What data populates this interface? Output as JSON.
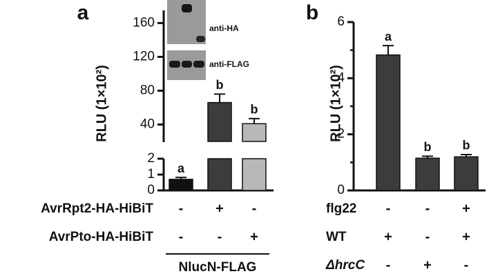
{
  "chart_data": [
    {
      "type": "bar",
      "panel_label": "a",
      "y_label": "RLU (1×10²)",
      "segments": [
        {
          "ylim": [
            0,
            2
          ],
          "yticks": [
            0,
            1,
            2
          ]
        },
        {
          "ylim": [
            20,
            175
          ],
          "yticks": [
            40,
            80,
            120,
            160
          ]
        }
      ],
      "values": [
        0.7,
        66,
        41
      ],
      "errors": [
        0.12,
        10,
        6
      ],
      "colors": [
        "#111111",
        "#3c3c3c",
        "#b8b8b8"
      ],
      "annotations": [
        "a",
        "b",
        "b"
      ],
      "conditions": [
        {
          "name": "AvrRpt2-HA-HiBiT",
          "values": [
            "-",
            "+",
            "-"
          ]
        },
        {
          "name": "AvrPto-HA-HiBiT",
          "values": [
            "-",
            "-",
            "+"
          ]
        }
      ],
      "condition_group": "NlucN-FLAG",
      "inset_labels": [
        "anti-HA",
        "anti-FLAG"
      ]
    },
    {
      "type": "bar",
      "panel_label": "b",
      "y_label": "RLU (1×10²)",
      "segments": [
        {
          "ylim": [
            0,
            6
          ],
          "yticks": [
            0,
            2,
            4,
            6
          ],
          "yminor": [
            1,
            3,
            5
          ]
        }
      ],
      "values": [
        4.83,
        1.15,
        1.2
      ],
      "errors": [
        0.33,
        0.07,
        0.08
      ],
      "colors": [
        "#3c3c3c",
        "#3c3c3c",
        "#3c3c3c"
      ],
      "annotations": [
        "a",
        "b",
        "b"
      ],
      "conditions": [
        {
          "name": "flg22",
          "values": [
            "-",
            "-",
            "+"
          ]
        },
        {
          "name": "WT",
          "values": [
            "+",
            "-",
            "+"
          ]
        },
        {
          "name": "ΔhrcC",
          "values": [
            "-",
            "+",
            "-"
          ]
        }
      ]
    }
  ]
}
